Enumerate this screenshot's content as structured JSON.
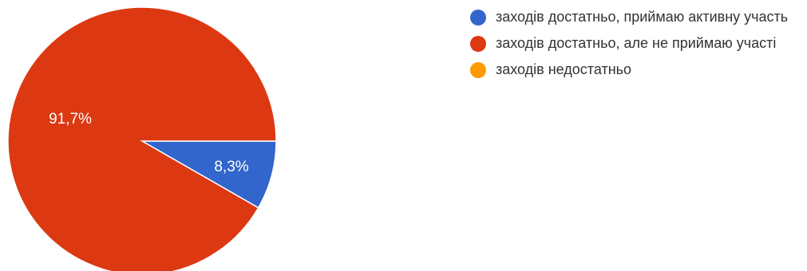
{
  "chart_data": {
    "type": "pie",
    "slices": [
      {
        "label": "заходів достатньо, приймаю активну участь",
        "value": 8.3,
        "display": "8,3%",
        "color": "#3366cc"
      },
      {
        "label": "заходів достатньо, але не приймаю участі",
        "value": 91.7,
        "display": "91,7%",
        "color": "#dc3912"
      },
      {
        "label": "заходів недостатньо",
        "value": 0,
        "display": "",
        "color": "#ff9900"
      }
    ],
    "legend_position": "right"
  }
}
